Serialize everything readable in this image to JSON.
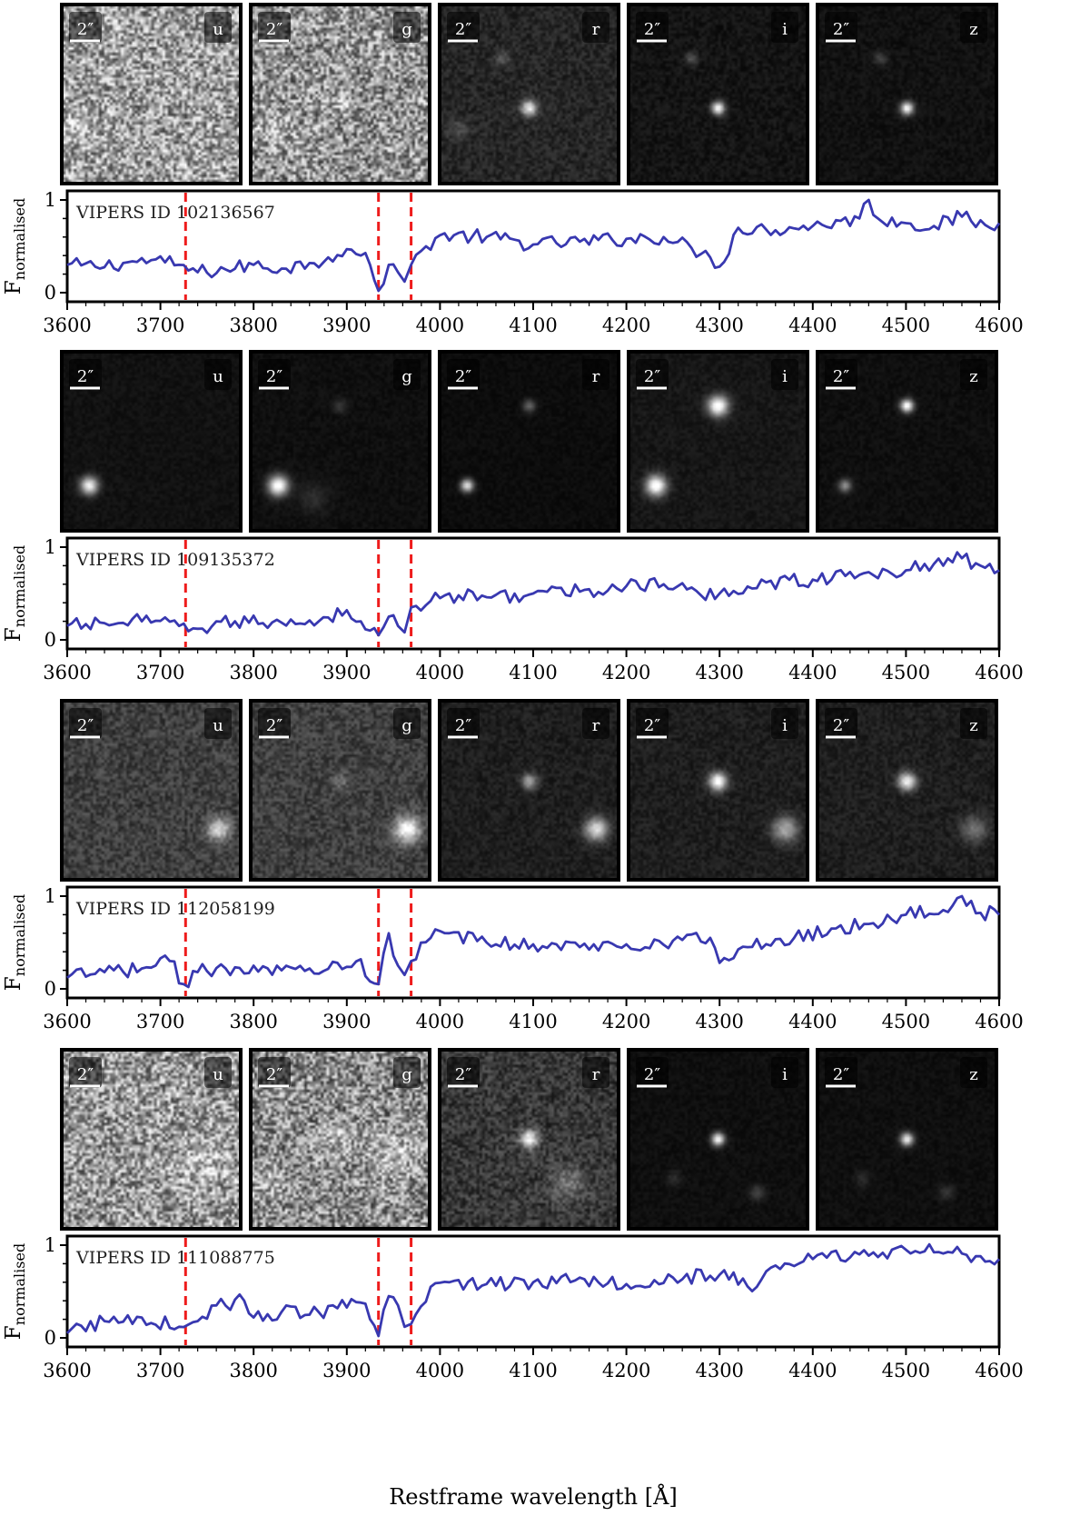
{
  "figure": {
    "xlabel": "Restframe wavelength [Å]",
    "ylabel_main": "F",
    "ylabel_sub": "normalised",
    "scale_label": "2″",
    "bands": [
      "u",
      "g",
      "r",
      "i",
      "z"
    ]
  },
  "colors": {
    "spectrum": "#3838b0",
    "marker_line": "#ee1c1c",
    "frame": "#000000"
  },
  "chart_data": [
    {
      "type": "line",
      "title": "VIPERS ID 102136567",
      "xlim": [
        3600,
        4600
      ],
      "ylim": [
        0,
        1
      ],
      "x_ticks": [
        3600,
        3700,
        3800,
        3900,
        4000,
        4100,
        4200,
        4300,
        4400,
        4500,
        4600
      ],
      "y_ticks": [
        0,
        1
      ],
      "vlines": [
        3727,
        3934,
        3969
      ],
      "cutouts": [
        {
          "band": "u",
          "background": 0.62,
          "noise": 0.38,
          "sources": [
            {
              "x": 0.1,
              "y": 0.7,
              "a": 0.15,
              "s": 0.06
            }
          ]
        },
        {
          "band": "g",
          "background": 0.58,
          "noise": 0.38,
          "sources": [
            {
              "x": 0.52,
              "y": 0.55,
              "a": 0.2,
              "s": 0.04
            },
            {
              "x": 0.12,
              "y": 0.7,
              "a": 0.15,
              "s": 0.06
            }
          ]
        },
        {
          "band": "r",
          "background": 0.15,
          "noise": 0.08,
          "sources": [
            {
              "x": 0.5,
              "y": 0.58,
              "a": 0.8,
              "s": 0.03
            },
            {
              "x": 0.35,
              "y": 0.3,
              "a": 0.2,
              "s": 0.03
            },
            {
              "x": 0.1,
              "y": 0.7,
              "a": 0.15,
              "s": 0.04
            }
          ]
        },
        {
          "band": "i",
          "background": 0.08,
          "noise": 0.05,
          "sources": [
            {
              "x": 0.5,
              "y": 0.58,
              "a": 0.95,
              "s": 0.025
            },
            {
              "x": 0.35,
              "y": 0.3,
              "a": 0.25,
              "s": 0.025
            }
          ]
        },
        {
          "band": "z",
          "background": 0.07,
          "noise": 0.04,
          "sources": [
            {
              "x": 0.5,
              "y": 0.58,
              "a": 0.95,
              "s": 0.025
            },
            {
              "x": 0.35,
              "y": 0.3,
              "a": 0.2,
              "s": 0.025
            }
          ]
        }
      ],
      "series": [
        {
          "x": [
            3600,
            3630,
            3660,
            3690,
            3720,
            3740,
            3770,
            3800,
            3830,
            3860,
            3880,
            3900,
            3915,
            3925,
            3934,
            3945,
            3955,
            3962,
            3969,
            3985,
            4000,
            4050,
            4100,
            4150,
            4200,
            4240,
            4270,
            4290,
            4300,
            4320,
            4350,
            4400,
            4450,
            4460,
            4470,
            4500,
            4530,
            4560,
            4590,
            4600
          ],
          "y": [
            0.3,
            0.28,
            0.32,
            0.35,
            0.3,
            0.22,
            0.25,
            0.3,
            0.26,
            0.32,
            0.38,
            0.47,
            0.4,
            0.3,
            0.02,
            0.3,
            0.22,
            0.12,
            0.3,
            0.5,
            0.62,
            0.6,
            0.52,
            0.55,
            0.58,
            0.6,
            0.48,
            0.38,
            0.28,
            0.7,
            0.68,
            0.72,
            0.8,
            1.0,
            0.8,
            0.75,
            0.72,
            0.82,
            0.7,
            0.75
          ]
        }
      ]
    },
    {
      "type": "line",
      "title": "VIPERS ID 109135372",
      "xlim": [
        3600,
        4600
      ],
      "ylim": [
        0,
        1
      ],
      "x_ticks": [
        3600,
        3700,
        3800,
        3900,
        4000,
        4100,
        4200,
        4300,
        4400,
        4500,
        4600
      ],
      "y_ticks": [
        0,
        1
      ],
      "vlines": [
        3727,
        3934,
        3969
      ],
      "cutouts": [
        {
          "band": "u",
          "background": 0.07,
          "noise": 0.03,
          "sources": [
            {
              "x": 0.15,
              "y": 0.75,
              "a": 0.9,
              "s": 0.035
            }
          ]
        },
        {
          "band": "g",
          "background": 0.06,
          "noise": 0.03,
          "sources": [
            {
              "x": 0.15,
              "y": 0.75,
              "a": 1.0,
              "s": 0.04
            },
            {
              "x": 0.5,
              "y": 0.3,
              "a": 0.15,
              "s": 0.03
            },
            {
              "x": 0.35,
              "y": 0.82,
              "a": 0.12,
              "s": 0.06
            }
          ]
        },
        {
          "band": "r",
          "background": 0.05,
          "noise": 0.025,
          "sources": [
            {
              "x": 0.15,
              "y": 0.75,
              "a": 0.85,
              "s": 0.025
            },
            {
              "x": 0.5,
              "y": 0.3,
              "a": 0.35,
              "s": 0.025
            }
          ]
        },
        {
          "band": "i",
          "background": 0.09,
          "noise": 0.04,
          "sources": [
            {
              "x": 0.15,
              "y": 0.75,
              "a": 1.0,
              "s": 0.04
            },
            {
              "x": 0.5,
              "y": 0.3,
              "a": 1.0,
              "s": 0.04
            }
          ]
        },
        {
          "band": "z",
          "background": 0.06,
          "noise": 0.03,
          "sources": [
            {
              "x": 0.15,
              "y": 0.75,
              "a": 0.5,
              "s": 0.025
            },
            {
              "x": 0.5,
              "y": 0.3,
              "a": 1.0,
              "s": 0.025
            }
          ]
        }
      ],
      "series": [
        {
          "x": [
            3600,
            3640,
            3680,
            3720,
            3740,
            3780,
            3810,
            3840,
            3870,
            3900,
            3915,
            3925,
            3934,
            3945,
            3955,
            3962,
            3969,
            3990,
            4020,
            4050,
            4100,
            4150,
            4200,
            4240,
            4280,
            4300,
            4350,
            4400,
            4450,
            4500,
            4530,
            4560,
            4580,
            4600
          ],
          "y": [
            0.15,
            0.18,
            0.2,
            0.15,
            0.12,
            0.2,
            0.18,
            0.22,
            0.2,
            0.32,
            0.2,
            0.1,
            0.05,
            0.25,
            0.15,
            0.08,
            0.35,
            0.42,
            0.48,
            0.46,
            0.5,
            0.52,
            0.58,
            0.6,
            0.48,
            0.5,
            0.62,
            0.65,
            0.7,
            0.75,
            0.82,
            0.88,
            0.8,
            0.75
          ]
        }
      ]
    },
    {
      "type": "line",
      "title": "VIPERS ID 112058199",
      "xlim": [
        3600,
        4600
      ],
      "ylim": [
        0,
        1
      ],
      "x_ticks": [
        3600,
        3700,
        3800,
        3900,
        4000,
        4100,
        4200,
        4300,
        4400,
        4500,
        4600
      ],
      "y_ticks": [
        0,
        1
      ],
      "vlines": [
        3727,
        3934,
        3969
      ],
      "cutouts": [
        {
          "band": "u",
          "background": 0.25,
          "noise": 0.12,
          "sources": [
            {
              "x": 0.88,
              "y": 0.72,
              "a": 0.6,
              "s": 0.045
            }
          ]
        },
        {
          "band": "g",
          "background": 0.25,
          "noise": 0.12,
          "sources": [
            {
              "x": 0.88,
              "y": 0.72,
              "a": 0.8,
              "s": 0.05
            },
            {
              "x": 0.5,
              "y": 0.45,
              "a": 0.2,
              "s": 0.03
            }
          ]
        },
        {
          "band": "r",
          "background": 0.12,
          "noise": 0.06,
          "sources": [
            {
              "x": 0.5,
              "y": 0.45,
              "a": 0.55,
              "s": 0.03
            },
            {
              "x": 0.88,
              "y": 0.72,
              "a": 0.75,
              "s": 0.045
            }
          ]
        },
        {
          "band": "i",
          "background": 0.12,
          "noise": 0.06,
          "sources": [
            {
              "x": 0.5,
              "y": 0.45,
              "a": 0.95,
              "s": 0.035
            },
            {
              "x": 0.88,
              "y": 0.72,
              "a": 0.55,
              "s": 0.05
            }
          ]
        },
        {
          "band": "z",
          "background": 0.12,
          "noise": 0.06,
          "sources": [
            {
              "x": 0.5,
              "y": 0.45,
              "a": 0.85,
              "s": 0.035
            },
            {
              "x": 0.88,
              "y": 0.72,
              "a": 0.35,
              "s": 0.05
            }
          ]
        }
      ],
      "series": [
        {
          "x": [
            3600,
            3640,
            3680,
            3710,
            3725,
            3740,
            3770,
            3800,
            3830,
            3860,
            3890,
            3915,
            3925,
            3934,
            3945,
            3955,
            3962,
            3969,
            3990,
            4010,
            4050,
            4100,
            4150,
            4200,
            4250,
            4290,
            4300,
            4330,
            4380,
            4420,
            4460,
            4500,
            4540,
            4560,
            4580,
            4600
          ],
          "y": [
            0.12,
            0.18,
            0.22,
            0.3,
            0.05,
            0.18,
            0.22,
            0.25,
            0.2,
            0.22,
            0.28,
            0.32,
            0.08,
            0.05,
            0.6,
            0.25,
            0.15,
            0.3,
            0.55,
            0.6,
            0.5,
            0.48,
            0.45,
            0.48,
            0.52,
            0.55,
            0.28,
            0.45,
            0.55,
            0.65,
            0.7,
            0.8,
            0.85,
            1.0,
            0.82,
            0.8
          ]
        }
      ]
    },
    {
      "type": "line",
      "title": "VIPERS ID 111088775",
      "xlim": [
        3600,
        4600
      ],
      "ylim": [
        0,
        1
      ],
      "x_ticks": [
        3600,
        3700,
        3800,
        3900,
        4000,
        4100,
        4200,
        4300,
        4400,
        4500,
        4600
      ],
      "y_ticks": [
        0,
        1
      ],
      "vlines": [
        3727,
        3934,
        3969
      ],
      "cutouts": [
        {
          "band": "u",
          "background": 0.6,
          "noise": 0.38,
          "sources": [
            {
              "x": 0.8,
              "y": 0.6,
              "a": 0.15,
              "s": 0.1
            }
          ]
        },
        {
          "band": "g",
          "background": 0.55,
          "noise": 0.38,
          "sources": [
            {
              "x": 0.5,
              "y": 0.5,
              "a": 0.2,
              "s": 0.06
            },
            {
              "x": 0.8,
              "y": 0.6,
              "a": 0.2,
              "s": 0.1
            },
            {
              "x": 0.1,
              "y": 0.75,
              "a": 0.15,
              "s": 0.06
            }
          ]
        },
        {
          "band": "r",
          "background": 0.22,
          "noise": 0.14,
          "sources": [
            {
              "x": 0.5,
              "y": 0.5,
              "a": 0.8,
              "s": 0.035
            },
            {
              "x": 0.72,
              "y": 0.75,
              "a": 0.25,
              "s": 0.07
            }
          ]
        },
        {
          "band": "i",
          "background": 0.06,
          "noise": 0.03,
          "sources": [
            {
              "x": 0.5,
              "y": 0.5,
              "a": 0.95,
              "s": 0.025
            },
            {
              "x": 0.72,
              "y": 0.8,
              "a": 0.2,
              "s": 0.03
            },
            {
              "x": 0.25,
              "y": 0.72,
              "a": 0.12,
              "s": 0.03
            }
          ]
        },
        {
          "band": "z",
          "background": 0.06,
          "noise": 0.03,
          "sources": [
            {
              "x": 0.5,
              "y": 0.5,
              "a": 0.9,
              "s": 0.025
            },
            {
              "x": 0.72,
              "y": 0.8,
              "a": 0.15,
              "s": 0.03
            },
            {
              "x": 0.25,
              "y": 0.72,
              "a": 0.12,
              "s": 0.03
            }
          ]
        }
      ],
      "series": [
        {
          "x": [
            3600,
            3640,
            3680,
            3720,
            3740,
            3760,
            3790,
            3800,
            3830,
            3860,
            3890,
            3915,
            3925,
            3934,
            3945,
            3955,
            3962,
            3969,
            3990,
            4010,
            4050,
            4100,
            4150,
            4200,
            4250,
            4300,
            4340,
            4360,
            4400,
            4450,
            4500,
            4550,
            4580,
            4600
          ],
          "y": [
            0.05,
            0.18,
            0.22,
            0.12,
            0.18,
            0.35,
            0.4,
            0.22,
            0.28,
            0.25,
            0.32,
            0.38,
            0.2,
            0.02,
            0.45,
            0.35,
            0.12,
            0.15,
            0.55,
            0.6,
            0.58,
            0.6,
            0.65,
            0.58,
            0.65,
            0.68,
            0.55,
            0.78,
            0.85,
            0.9,
            0.95,
            0.92,
            0.88,
            0.85
          ]
        }
      ]
    }
  ]
}
